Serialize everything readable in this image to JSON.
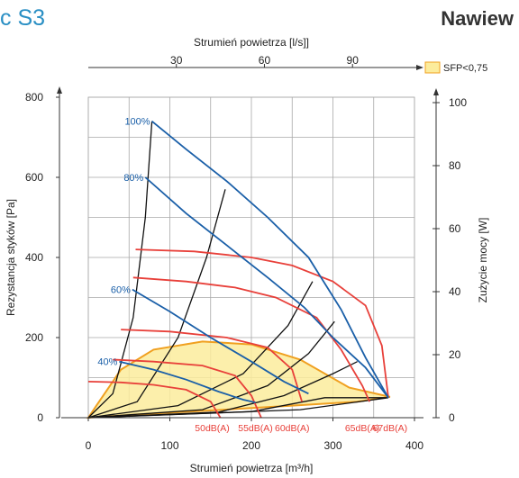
{
  "header": {
    "title": "c S3",
    "right_label": "Nawiew"
  },
  "chart_data": {
    "type": "line",
    "xlabel_bottom": "Strumień powietrza [m³/h]",
    "xlabel_top": "Strumień powietrza [l/s]]",
    "ylabel_left": "Rezystancja styków [Pa]",
    "ylabel_right": "Zużycie mocy [W]",
    "xlim": [
      0,
      400
    ],
    "ylim_left": [
      0,
      800
    ],
    "ylim_right": [
      0,
      100
    ],
    "x_ticks_bottom": [
      "0",
      "100",
      "200",
      "300",
      "400"
    ],
    "x_ticks_top": [
      "30",
      "60",
      "90"
    ],
    "x_ticks_top_values": [
      108,
      216,
      324
    ],
    "y_ticks_left": [
      "0",
      "200",
      "400",
      "600",
      "800"
    ],
    "y_ticks_right": [
      "0",
      "20",
      "40",
      "60",
      "80",
      "100"
    ],
    "legend": {
      "label": "SFP<0,75",
      "color": "#fcec9c"
    },
    "colors": {
      "fan": "#1a5fa8",
      "noise": "#e8403a",
      "system": "#111111",
      "sfp_fill": "#fcec9c",
      "sfp_stroke": "#f0a020"
    },
    "sfp_area": [
      [
        0,
        0
      ],
      [
        10,
        30
      ],
      [
        40,
        120
      ],
      [
        80,
        170
      ],
      [
        140,
        190
      ],
      [
        200,
        183
      ],
      [
        260,
        145
      ],
      [
        320,
        75
      ],
      [
        370,
        52
      ],
      [
        330,
        40
      ],
      [
        250,
        30
      ],
      [
        150,
        18
      ],
      [
        60,
        8
      ],
      [
        0,
        0
      ]
    ],
    "fan_curves": [
      {
        "label": "100%",
        "points": [
          [
            78,
            740
          ],
          [
            120,
            670
          ],
          [
            170,
            590
          ],
          [
            220,
            500
          ],
          [
            270,
            400
          ],
          [
            310,
            270
          ],
          [
            340,
            150
          ],
          [
            368,
            50
          ]
        ]
      },
      {
        "label": "80%",
        "points": [
          [
            70,
            600
          ],
          [
            120,
            510
          ],
          [
            170,
            430
          ],
          [
            220,
            350
          ],
          [
            265,
            275
          ],
          [
            300,
            200
          ],
          [
            340,
            125
          ],
          [
            368,
            50
          ]
        ]
      },
      {
        "label": "60%",
        "points": [
          [
            54,
            320
          ],
          [
            100,
            265
          ],
          [
            150,
            200
          ],
          [
            200,
            140
          ],
          [
            240,
            90
          ],
          [
            270,
            60
          ]
        ]
      },
      {
        "label": "40%",
        "points": [
          [
            38,
            140
          ],
          [
            80,
            120
          ],
          [
            120,
            95
          ],
          [
            160,
            65
          ],
          [
            190,
            45
          ],
          [
            205,
            38
          ]
        ]
      }
    ],
    "noise_curves": [
      {
        "label": "50dB(A)",
        "points": [
          [
            0,
            90
          ],
          [
            40,
            88
          ],
          [
            80,
            82
          ],
          [
            120,
            70
          ],
          [
            150,
            40
          ],
          [
            162,
            0
          ]
        ]
      },
      {
        "label": "55dB(A)",
        "points": [
          [
            30,
            145
          ],
          [
            80,
            140
          ],
          [
            140,
            130
          ],
          [
            180,
            105
          ],
          [
            200,
            55
          ],
          [
            212,
            0
          ]
        ]
      },
      {
        "label": "60dB(A)",
        "points": [
          [
            40,
            220
          ],
          [
            100,
            215
          ],
          [
            170,
            200
          ],
          [
            220,
            175
          ],
          [
            250,
            120
          ],
          [
            262,
            40
          ]
        ]
      },
      {
        "label": "65dB(A)",
        "points": [
          [
            55,
            350
          ],
          [
            120,
            340
          ],
          [
            180,
            325
          ],
          [
            230,
            300
          ],
          [
            280,
            250
          ],
          [
            310,
            170
          ],
          [
            336,
            80
          ],
          [
            345,
            40
          ]
        ]
      },
      {
        "label": "67dB(A)",
        "points": [
          [
            58,
            420
          ],
          [
            130,
            415
          ],
          [
            200,
            400
          ],
          [
            250,
            380
          ],
          [
            300,
            340
          ],
          [
            340,
            280
          ],
          [
            360,
            180
          ],
          [
            368,
            50
          ]
        ]
      }
    ],
    "system_curves": [
      [
        [
          0,
          0
        ],
        [
          30,
          60
        ],
        [
          55,
          250
        ],
        [
          70,
          500
        ],
        [
          78,
          740
        ]
      ],
      [
        [
          0,
          0
        ],
        [
          60,
          40
        ],
        [
          110,
          200
        ],
        [
          145,
          400
        ],
        [
          168,
          570
        ]
      ],
      [
        [
          0,
          0
        ],
        [
          110,
          30
        ],
        [
          190,
          110
        ],
        [
          245,
          230
        ],
        [
          275,
          340
        ]
      ],
      [
        [
          0,
          0
        ],
        [
          140,
          20
        ],
        [
          220,
          80
        ],
        [
          270,
          160
        ],
        [
          302,
          240
        ]
      ],
      [
        [
          0,
          0
        ],
        [
          160,
          14
        ],
        [
          240,
          55
        ],
        [
          300,
          110
        ],
        [
          330,
          140
        ]
      ],
      [
        [
          0,
          0
        ],
        [
          200,
          15
        ],
        [
          290,
          50
        ],
        [
          368,
          50
        ]
      ],
      [
        [
          0,
          0
        ],
        [
          260,
          20
        ],
        [
          368,
          50
        ]
      ]
    ]
  }
}
